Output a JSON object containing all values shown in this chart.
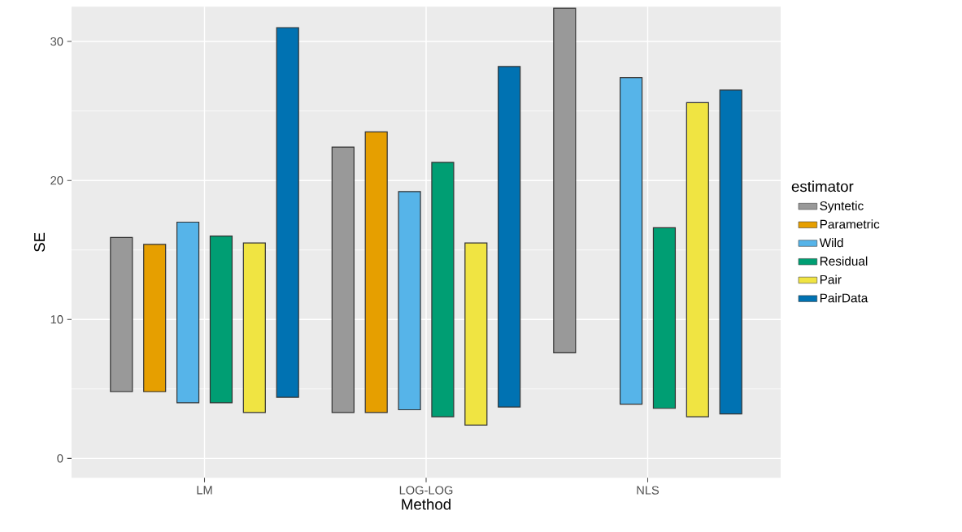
{
  "chart_data": {
    "type": "bar",
    "xlabel": "Method",
    "ylabel": "SE",
    "legend_title": "estimator",
    "categories": [
      "LM",
      "LOG-LOG",
      "NLS"
    ],
    "series": [
      {
        "name": "Syntetic",
        "color": "#999999",
        "base": [
          4.8,
          3.3,
          7.6
        ],
        "values": [
          11.1,
          19.1,
          24.8
        ]
      },
      {
        "name": "Parametric",
        "color": "#e69f00",
        "base": [
          4.8,
          3.3,
          null
        ],
        "values": [
          10.6,
          20.2,
          null
        ]
      },
      {
        "name": "Wild",
        "color": "#56b4e9",
        "base": [
          4.0,
          3.5,
          3.9
        ],
        "values": [
          13.0,
          15.7,
          23.5
        ]
      },
      {
        "name": "Residual",
        "color": "#009e73",
        "base": [
          4.0,
          3.0,
          3.6
        ],
        "values": [
          12.0,
          18.3,
          13.0
        ]
      },
      {
        "name": "Pair",
        "color": "#f0e442",
        "base": [
          3.3,
          2.4,
          3.0
        ],
        "values": [
          12.2,
          13.1,
          22.6
        ]
      },
      {
        "name": "PairData",
        "color": "#0072b2",
        "base": [
          4.4,
          3.7,
          3.2
        ],
        "values": [
          26.6,
          24.5,
          23.3
        ]
      }
    ],
    "ylim": [
      -1.4,
      32.5
    ],
    "yticks": [
      0,
      10,
      20,
      30
    ],
    "grid": true,
    "legend": "right"
  }
}
